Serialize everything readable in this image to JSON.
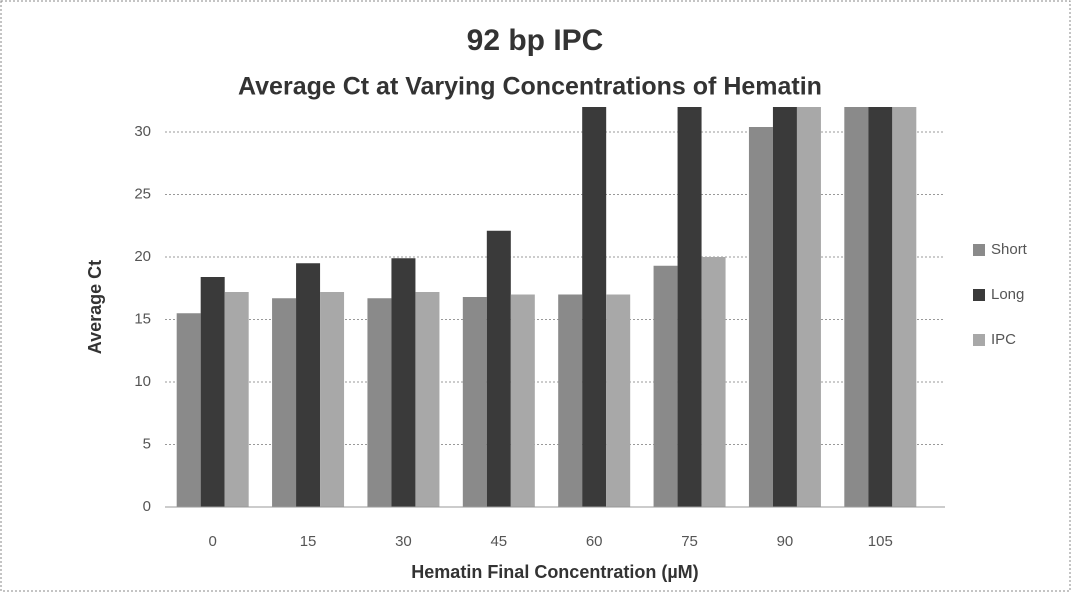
{
  "chart_data": {
    "type": "bar",
    "title": "92 bp IPC",
    "subtitle": "Average Ct at Varying Concentrations of Hematin",
    "x_label": "Hematin Final Concentration (µM)",
    "y_label": "Average Ct",
    "categories": [
      "0",
      "15",
      "30",
      "45",
      "60",
      "75",
      "90",
      "105"
    ],
    "series": [
      {
        "name": "Short",
        "color": "#8a8a8a",
        "values": [
          15.5,
          16.7,
          16.7,
          16.8,
          17.0,
          19.3,
          30.4,
          32
        ]
      },
      {
        "name": "Long",
        "color": "#3a3a3a",
        "values": [
          18.4,
          19.5,
          19.9,
          22.1,
          32,
          32,
          32,
          32
        ]
      },
      {
        "name": "IPC",
        "color": "#a8a8a8",
        "values": [
          17.2,
          17.2,
          17.2,
          17.0,
          17.0,
          20.0,
          32,
          32
        ]
      }
    ],
    "ylim": [
      0,
      32
    ],
    "yticks": [
      0,
      5,
      10,
      15,
      20,
      25,
      30
    ],
    "grid": true,
    "legend": "right"
  }
}
